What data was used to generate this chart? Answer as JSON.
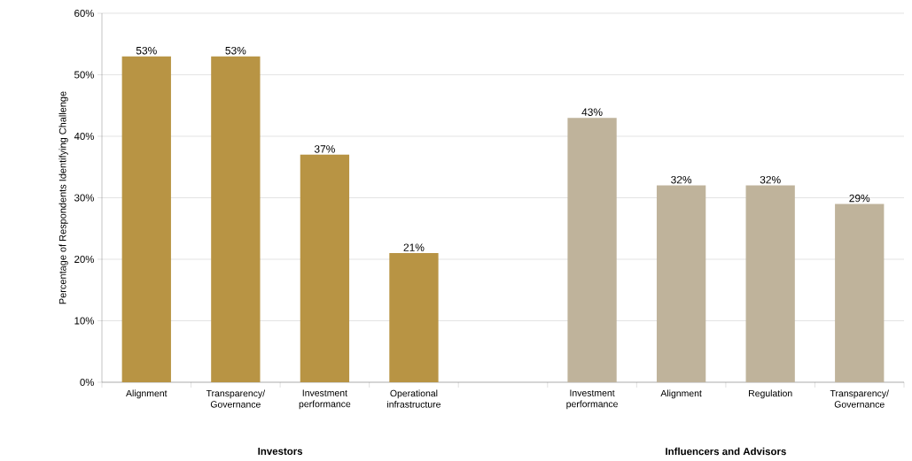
{
  "chart_data": {
    "type": "bar",
    "ylabel": "Percentage of Respondents Identifying Challenge",
    "categories": [
      "Alignment",
      "Transparency/ Governance",
      "Investment performance",
      "Operational infrastructure",
      null,
      "Investment performance",
      "Alignment",
      "Regulation",
      "Transparency/ Governance"
    ],
    "series": [
      {
        "color": "#b89444",
        "values": [
          53,
          53,
          37,
          21,
          null,
          null,
          null,
          null,
          null
        ],
        "value_labels": [
          "53%",
          "53%",
          "37%",
          "21%",
          null,
          null,
          null,
          null,
          null
        ]
      },
      {
        "color": "#bfb39b",
        "values": [
          null,
          null,
          null,
          null,
          null,
          43,
          32,
          32,
          29
        ],
        "value_labels": [
          null,
          null,
          null,
          null,
          null,
          "43%",
          "32%",
          "32%",
          "29%"
        ]
      }
    ],
    "ylim": [
      0,
      60
    ],
    "yticks": [
      {
        "value": 0,
        "label": "0%"
      },
      {
        "value": 10,
        "label": "10%"
      },
      {
        "value": 20,
        "label": "20%"
      },
      {
        "value": 30,
        "label": "30%"
      },
      {
        "value": 40,
        "label": "40%"
      },
      {
        "value": 50,
        "label": "50%"
      },
      {
        "value": 60,
        "label": "60%"
      }
    ],
    "annotations": [
      "Investors",
      "Influencers and Advisors"
    ],
    "grid": "y"
  }
}
